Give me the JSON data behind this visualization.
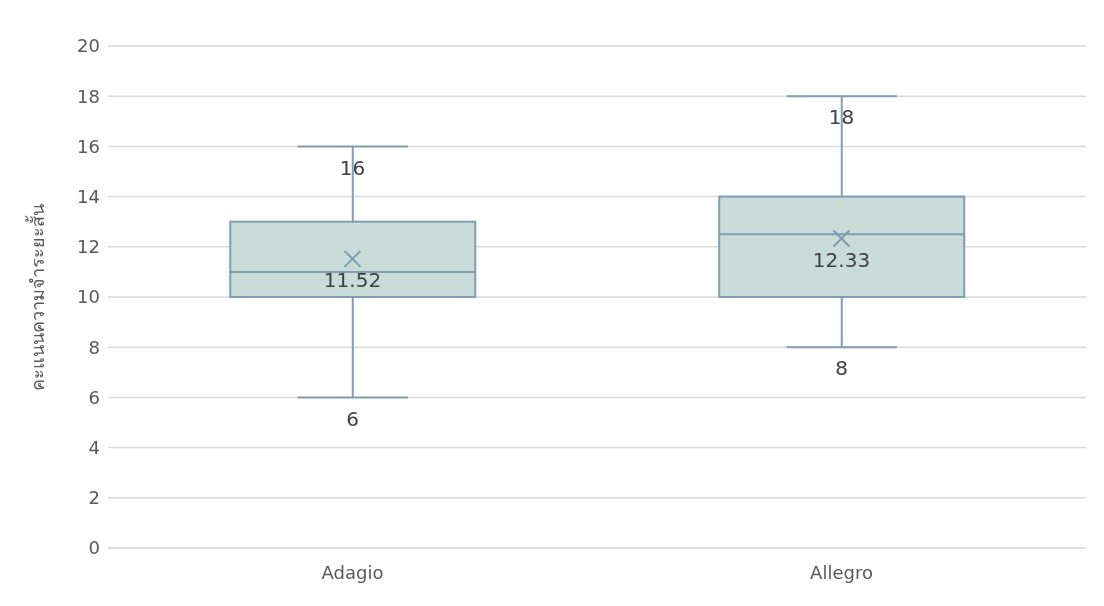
{
  "chart_data": {
    "type": "box",
    "ylabel": "คะแนนความจำระยะสั้น",
    "categories": [
      "Adagio",
      "Allegro"
    ],
    "boxes": [
      {
        "low": 6,
        "q1": 10,
        "median": 11,
        "q3": 13,
        "high": 16
      },
      {
        "low": 8,
        "q1": 10,
        "median": 12.5,
        "q3": 14,
        "high": 18
      }
    ],
    "series": [
      {
        "type": "scatter",
        "x": [
          "Adagio",
          "Allegro"
        ],
        "values": [
          11.52,
          12.33
        ],
        "color": "#7f9db5",
        "marker": "cross"
      }
    ],
    "color": "#c9dcd8",
    "ylim": [
      0,
      20
    ],
    "yticks": [
      0,
      2,
      4,
      6,
      8,
      10,
      12,
      14,
      16,
      18,
      20
    ],
    "grid": "y",
    "annotations": [
      {
        "text": "16",
        "x": "Adagio",
        "y": 16
      },
      {
        "text": "11.52",
        "x": "Adagio",
        "y": 11.52
      },
      {
        "text": "6",
        "x": "Adagio",
        "y": 6
      },
      {
        "text": "18",
        "x": "Allegro",
        "y": 18
      },
      {
        "text": "12.33",
        "x": "Allegro",
        "y": 12.33
      },
      {
        "text": "8",
        "x": "Allegro",
        "y": 8
      }
    ]
  }
}
